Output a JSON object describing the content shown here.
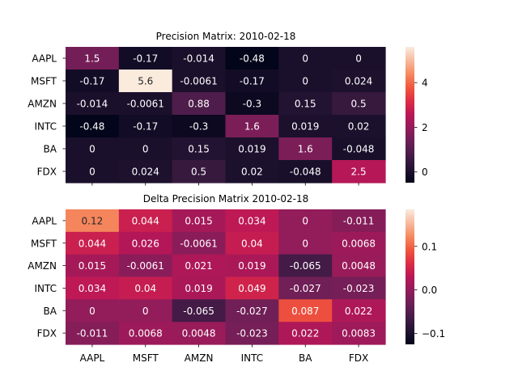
{
  "chart_data": [
    {
      "type": "heatmap",
      "title": "Precision Matrix: 2010-02-18",
      "rows": [
        "AAPL",
        "MSFT",
        "AMZN",
        "INTC",
        "BA",
        "FDX"
      ],
      "columns": [
        "AAPL",
        "MSFT",
        "AMZN",
        "INTC",
        "BA",
        "FDX"
      ],
      "show_x_tick_labels": false,
      "values": [
        [
          1.5,
          -0.17,
          -0.014,
          -0.48,
          0,
          0
        ],
        [
          -0.17,
          5.6,
          -0.0061,
          -0.17,
          0,
          0.024
        ],
        [
          -0.014,
          -0.0061,
          0.88,
          -0.3,
          0.15,
          0.5
        ],
        [
          -0.48,
          -0.17,
          -0.3,
          1.6,
          0.019,
          0.02
        ],
        [
          0,
          0,
          0.15,
          0.019,
          1.6,
          -0.048
        ],
        [
          0,
          0.024,
          0.5,
          0.02,
          -0.048,
          2.5
        ]
      ],
      "annotations": [
        [
          "1.5",
          "-0.17",
          "-0.014",
          "-0.48",
          "0",
          "0"
        ],
        [
          "-0.17",
          "5.6",
          "-0.0061",
          "-0.17",
          "0",
          "0.024"
        ],
        [
          "-0.014",
          "-0.0061",
          "0.88",
          "-0.3",
          "0.15",
          "0.5"
        ],
        [
          "-0.48",
          "-0.17",
          "-0.3",
          "1.6",
          "0.019",
          "0.02"
        ],
        [
          "0",
          "0",
          "0.15",
          "0.019",
          "1.6",
          "-0.048"
        ],
        [
          "0",
          "0.024",
          "0.5",
          "0.02",
          "-0.048",
          "2.5"
        ]
      ],
      "colorbar": {
        "vmin": -0.48,
        "vmax": 5.6,
        "ticks": [
          0,
          2,
          4
        ],
        "tick_labels": [
          "0",
          "2",
          "4"
        ]
      },
      "colormap": "rocket"
    },
    {
      "type": "heatmap",
      "title": "Delta Precision Matrix 2010-02-18",
      "rows": [
        "AAPL",
        "MSFT",
        "AMZN",
        "INTC",
        "BA",
        "FDX"
      ],
      "columns": [
        "AAPL",
        "MSFT",
        "AMZN",
        "INTC",
        "BA",
        "FDX"
      ],
      "show_x_tick_labels": true,
      "values": [
        [
          0.12,
          0.044,
          0.015,
          0.034,
          0,
          -0.011
        ],
        [
          0.044,
          0.026,
          -0.0061,
          0.04,
          0,
          0.0068
        ],
        [
          0.015,
          -0.0061,
          0.021,
          0.019,
          -0.065,
          0.0048
        ],
        [
          0.034,
          0.04,
          0.019,
          0.049,
          -0.027,
          -0.023
        ],
        [
          0,
          0,
          -0.065,
          -0.027,
          0.087,
          0.022
        ],
        [
          -0.011,
          0.0068,
          0.0048,
          -0.023,
          0.022,
          0.0083
        ]
      ],
      "annotations": [
        [
          "0.12",
          "0.044",
          "0.015",
          "0.034",
          "0",
          "-0.011"
        ],
        [
          "0.044",
          "0.026",
          "-0.0061",
          "0.04",
          "0",
          "0.0068"
        ],
        [
          "0.015",
          "-0.0061",
          "0.021",
          "0.019",
          "-0.065",
          "0.0048"
        ],
        [
          "0.034",
          "0.04",
          "0.019",
          "0.049",
          "-0.027",
          "-0.023"
        ],
        [
          "0",
          "0",
          "-0.065",
          "-0.027",
          "0.087",
          "0.022"
        ],
        [
          "-0.011",
          "0.0068",
          "0.0048",
          "-0.023",
          "0.022",
          "0.0083"
        ]
      ],
      "colorbar": {
        "vmin": -0.125,
        "vmax": 0.185,
        "ticks": [
          -0.1,
          0,
          0.1
        ],
        "tick_labels": [
          "−0.1",
          "0.0",
          "0.1"
        ]
      },
      "colormap": "rocket"
    }
  ]
}
